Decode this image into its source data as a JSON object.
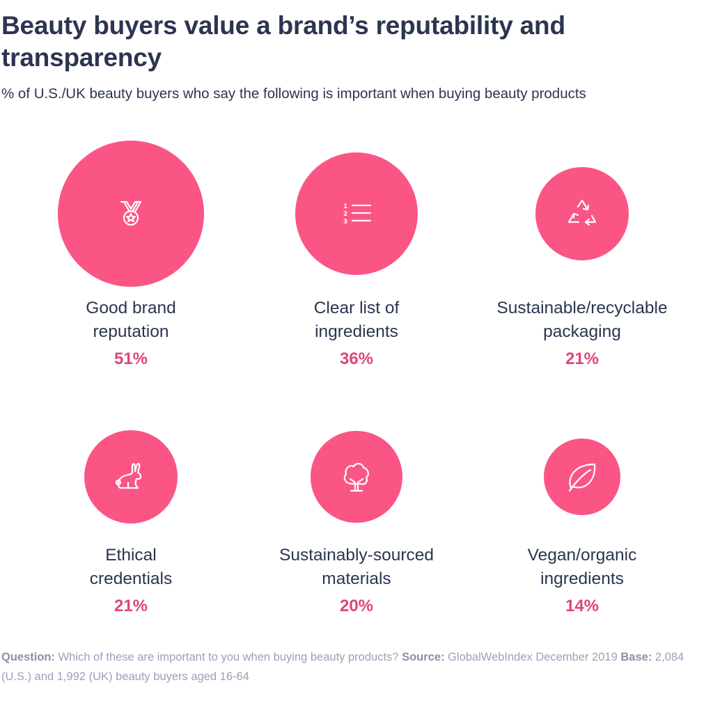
{
  "title": "Beauty buyers value a brand’s reputability and transparency",
  "subtitle": "% of U.S./UK beauty buyers who say the following is important when buying beauty products",
  "colors": {
    "bubble": "#fb5585",
    "value": "#e0457a",
    "text": "#2b3550",
    "footer": "#9aa1b8"
  },
  "chart_data": {
    "type": "bubble",
    "title": "Beauty buyers value a brand’s reputability and transparency",
    "unit": "%",
    "items": [
      {
        "label_lines": [
          "Good brand",
          "reputation"
        ],
        "value": 51,
        "value_label": "51%",
        "icon": "medal-icon"
      },
      {
        "label_lines": [
          "Clear list of",
          "ingredients"
        ],
        "value": 36,
        "value_label": "36%",
        "icon": "numbered-list-icon"
      },
      {
        "label_lines": [
          "Sustainable/recyclable",
          "packaging"
        ],
        "value": 21,
        "value_label": "21%",
        "icon": "recycle-icon"
      },
      {
        "label_lines": [
          "Ethical",
          "credentials"
        ],
        "value": 21,
        "value_label": "21%",
        "icon": "rabbit-icon"
      },
      {
        "label_lines": [
          "Sustainably-sourced",
          "materials"
        ],
        "value": 20,
        "value_label": "20%",
        "icon": "tree-icon"
      },
      {
        "label_lines": [
          "Vegan/organic",
          "ingredients"
        ],
        "value": 14,
        "value_label": "14%",
        "icon": "leaf-icon"
      }
    ]
  },
  "footer": {
    "question_label": "Question:",
    "question_text": "Which of these are important to you when buying beauty products?",
    "source_label": "Source:",
    "source_text": "GlobalWebIndex December 2019",
    "base_label": "Base:",
    "base_text": "2,084 (U.S.) and 1,992 (UK) beauty buyers aged 16-64"
  }
}
